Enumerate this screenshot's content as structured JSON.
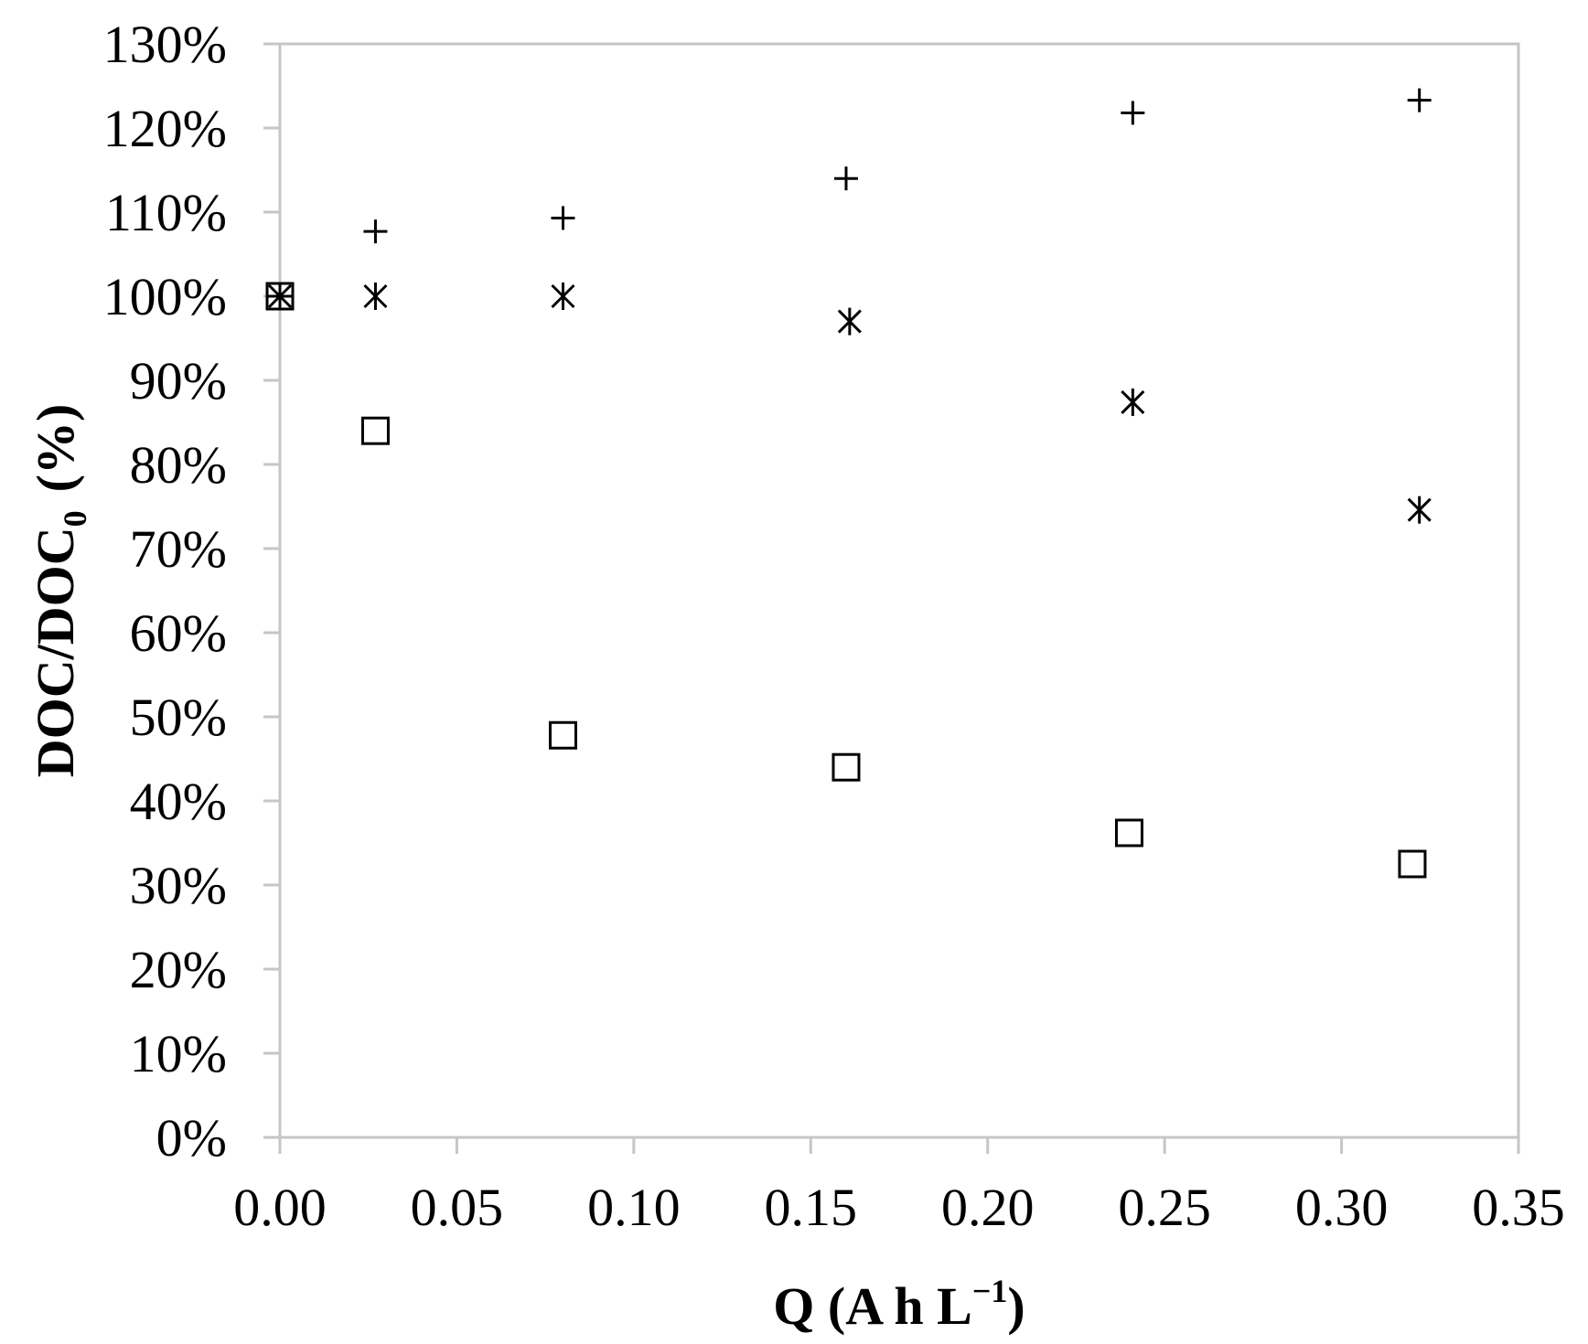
{
  "chart_data": {
    "type": "scatter",
    "xlabel": {
      "main": "Q (A h L",
      "sup": "−1",
      "close": ")"
    },
    "ylabel": {
      "main": "DOC/DOC",
      "sub": "0",
      "unit": "(%)"
    },
    "xlim": [
      0,
      0.35
    ],
    "ylim": [
      0,
      1.3
    ],
    "x_ticks": [
      "0.00",
      "0.05",
      "0.10",
      "0.15",
      "0.20",
      "0.25",
      "0.30",
      "0.35"
    ],
    "y_ticks": [
      "0%",
      "10%",
      "20%",
      "30%",
      "40%",
      "50%",
      "60%",
      "70%",
      "80%",
      "90%",
      "100%",
      "110%",
      "120%",
      "130%"
    ],
    "grid": false,
    "series": [
      {
        "marker": "plus",
        "points": [
          {
            "x": 0.0,
            "y": 1.0
          },
          {
            "x": 0.027,
            "y": 1.077
          },
          {
            "x": 0.08,
            "y": 1.093
          },
          {
            "x": 0.16,
            "y": 1.14
          },
          {
            "x": 0.241,
            "y": 1.218
          },
          {
            "x": 0.322,
            "y": 1.233
          }
        ]
      },
      {
        "marker": "asterisk",
        "points": [
          {
            "x": 0.0,
            "y": 1.0
          },
          {
            "x": 0.027,
            "y": 1.0
          },
          {
            "x": 0.08,
            "y": 1.0
          },
          {
            "x": 0.161,
            "y": 0.97
          },
          {
            "x": 0.241,
            "y": 0.874
          },
          {
            "x": 0.322,
            "y": 0.746
          }
        ]
      },
      {
        "marker": "square",
        "points": [
          {
            "x": 0.0,
            "y": 1.0
          },
          {
            "x": 0.027,
            "y": 0.84
          },
          {
            "x": 0.08,
            "y": 0.478
          },
          {
            "x": 0.16,
            "y": 0.44
          },
          {
            "x": 0.24,
            "y": 0.362
          },
          {
            "x": 0.32,
            "y": 0.325
          }
        ]
      }
    ]
  }
}
